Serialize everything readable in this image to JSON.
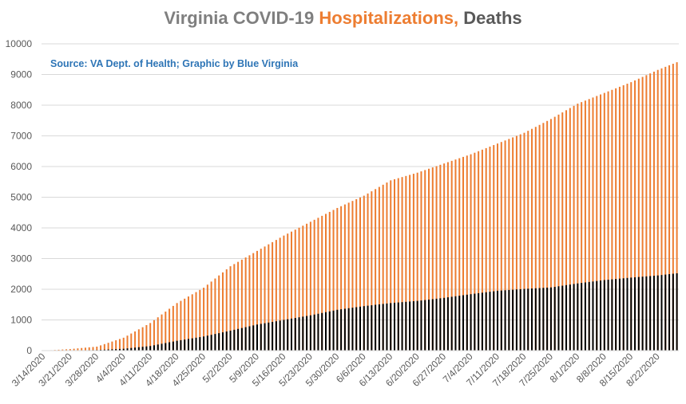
{
  "title_parts": [
    "Virginia COVID-19 ",
    "Hospitalizations, ",
    "Deaths"
  ],
  "source_note": "Source: VA Dept. of Health; Graphic by Blue Virginia",
  "colors": {
    "hospitalizations": "#ed7d31",
    "deaths": "#000000",
    "grid": "#d9d9d9",
    "axis_text": "#595959"
  },
  "chart_data": {
    "type": "bar",
    "title": "Virginia COVID-19 Hospitalizations, Deaths",
    "x_start": "3/14/2020",
    "x_end": "8/27/2020",
    "x_tick_labels": [
      "3/14/2020",
      "3/21/2020",
      "3/28/2020",
      "4/4/2020",
      "4/11/2020",
      "4/18/2020",
      "4/25/2020",
      "5/2/2020",
      "5/9/2020",
      "5/16/2020",
      "5/23/2020",
      "5/30/2020",
      "6/6/2020",
      "6/13/2020",
      "6/20/2020",
      "6/27/2020",
      "7/4/2020",
      "7/11/2020",
      "7/18/2020",
      "7/25/2020",
      "8/1/2020",
      "8/8/2020",
      "8/15/2020",
      "8/22/2020"
    ],
    "ylim": [
      0,
      10000
    ],
    "y_ticks": [
      0,
      1000,
      2000,
      3000,
      4000,
      5000,
      6000,
      7000,
      8000,
      9000,
      10000
    ],
    "grid": true,
    "series": [
      {
        "name": "Hospitalizations",
        "color": "#ed7d31",
        "anchors": [
          [
            "3/14/2020",
            0
          ],
          [
            "3/21/2020",
            50
          ],
          [
            "3/28/2020",
            130
          ],
          [
            "4/4/2020",
            420
          ],
          [
            "4/11/2020",
            900
          ],
          [
            "4/18/2020",
            1550
          ],
          [
            "4/25/2020",
            2050
          ],
          [
            "5/2/2020",
            2750
          ],
          [
            "5/9/2020",
            3250
          ],
          [
            "5/16/2020",
            3750
          ],
          [
            "5/23/2020",
            4200
          ],
          [
            "5/30/2020",
            4650
          ],
          [
            "6/6/2020",
            5050
          ],
          [
            "6/13/2020",
            5550
          ],
          [
            "6/20/2020",
            5800
          ],
          [
            "6/27/2020",
            6100
          ],
          [
            "7/4/2020",
            6400
          ],
          [
            "7/11/2020",
            6750
          ],
          [
            "7/18/2020",
            7100
          ],
          [
            "7/25/2020",
            7550
          ],
          [
            "8/1/2020",
            8050
          ],
          [
            "8/8/2020",
            8400
          ],
          [
            "8/15/2020",
            8750
          ],
          [
            "8/22/2020",
            9150
          ],
          [
            "8/27/2020",
            9400
          ]
        ]
      },
      {
        "name": "Deaths",
        "color": "#000000",
        "anchors": [
          [
            "3/14/2020",
            0
          ],
          [
            "3/21/2020",
            5
          ],
          [
            "3/28/2020",
            20
          ],
          [
            "4/4/2020",
            60
          ],
          [
            "4/11/2020",
            150
          ],
          [
            "4/18/2020",
            320
          ],
          [
            "4/25/2020",
            460
          ],
          [
            "5/2/2020",
            650
          ],
          [
            "5/9/2020",
            850
          ],
          [
            "5/16/2020",
            1000
          ],
          [
            "5/23/2020",
            1150
          ],
          [
            "5/30/2020",
            1330
          ],
          [
            "6/6/2020",
            1450
          ],
          [
            "6/13/2020",
            1550
          ],
          [
            "6/20/2020",
            1620
          ],
          [
            "6/27/2020",
            1720
          ],
          [
            "7/4/2020",
            1840
          ],
          [
            "7/11/2020",
            1950
          ],
          [
            "7/18/2020",
            2010
          ],
          [
            "7/25/2020",
            2060
          ],
          [
            "8/1/2020",
            2190
          ],
          [
            "8/8/2020",
            2300
          ],
          [
            "8/15/2020",
            2380
          ],
          [
            "8/22/2020",
            2450
          ],
          [
            "8/27/2020",
            2520
          ]
        ]
      }
    ]
  }
}
